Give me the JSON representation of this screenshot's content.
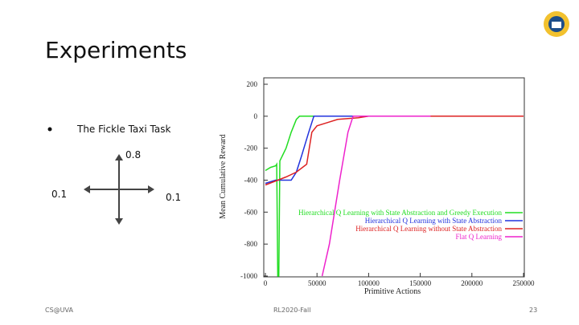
{
  "header": {
    "title": "Experiments"
  },
  "bullets": [
    "The Fickle Taxi Task"
  ],
  "diagram": {
    "up": "0.8",
    "left": "0.1",
    "right": "0.1"
  },
  "footer": {
    "left": "CS@UVA",
    "center": "RL2020-Fall",
    "page": "23"
  },
  "chart_data": {
    "type": "line",
    "x_label": "Primitive Actions",
    "y_label": "Mean Cumulative Reward",
    "xlim": [
      0,
      250000
    ],
    "xticks": [
      0,
      50000,
      100000,
      150000,
      200000,
      250000
    ],
    "ylim": [
      -1000,
      200
    ],
    "yticks": [
      200,
      0,
      -200,
      -400,
      -600,
      -800,
      -1000
    ],
    "grid": false,
    "legend": "right",
    "series": [
      {
        "name": "Hierarchical Q Learning with State Abstraction and Greedy Execution",
        "color": "#22dd22",
        "x": [
          0,
          5000,
          10000,
          11000,
          12000,
          13000,
          14000,
          20000,
          25000,
          30000,
          33000,
          160000
        ],
        "values": [
          -340,
          -320,
          -310,
          -300,
          -1000,
          -1000,
          -280,
          -200,
          -100,
          -20,
          0,
          0
        ]
      },
      {
        "name": "Hierarchical Q Learning with State Abstraction",
        "color": "#2233dd",
        "x": [
          0,
          10000,
          25000,
          30000,
          35000,
          42000,
          47000,
          160000
        ],
        "values": [
          -420,
          -400,
          -400,
          -350,
          -250,
          -100,
          0,
          0
        ]
      },
      {
        "name": "Hierarchical Q Learning without State Abstraction",
        "color": "#dd2222",
        "x": [
          0,
          20000,
          30000,
          40000,
          45000,
          50000,
          60000,
          70000,
          90000,
          100000,
          250000
        ],
        "values": [
          -430,
          -380,
          -350,
          -300,
          -100,
          -60,
          -40,
          -20,
          -10,
          0,
          0
        ]
      },
      {
        "name": "Flat Q Learning",
        "color": "#ee22cc",
        "x": [
          55000,
          62000,
          72000,
          80000,
          85000,
          160000
        ],
        "values": [
          -1000,
          -800,
          -400,
          -100,
          0,
          0
        ]
      }
    ]
  }
}
